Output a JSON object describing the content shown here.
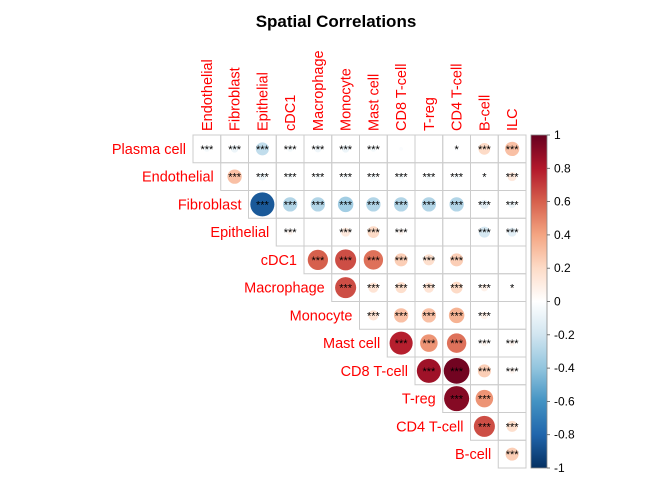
{
  "chart_data": {
    "type": "heatmap",
    "subtype": "correlation-circle-upper",
    "title": "Spatial Correlations",
    "row_labels": [
      "Plasma cell",
      "Endothelial",
      "Fibroblast",
      "Epithelial",
      "cDC1",
      "Macrophage",
      "Monocyte",
      "Mast cell",
      "CD8 T-cell",
      "T-reg",
      "CD4 T-cell",
      "B-cell"
    ],
    "col_labels": [
      "Endothelial",
      "Fibroblast",
      "Epithelial",
      "cDC1",
      "Macrophage",
      "Monocyte",
      "Mast cell",
      "CD8 T-cell",
      "T-reg",
      "CD4 T-cell",
      "B-cell",
      "ILC"
    ],
    "cells": [
      {
        "row": 0,
        "col": 0,
        "value": -0.05,
        "sig": "***"
      },
      {
        "row": 0,
        "col": 1,
        "value": -0.08,
        "sig": "***"
      },
      {
        "row": 0,
        "col": 2,
        "value": -0.25,
        "sig": "***"
      },
      {
        "row": 0,
        "col": 3,
        "value": -0.05,
        "sig": "***"
      },
      {
        "row": 0,
        "col": 4,
        "value": -0.07,
        "sig": "***"
      },
      {
        "row": 0,
        "col": 5,
        "value": -0.08,
        "sig": "***"
      },
      {
        "row": 0,
        "col": 6,
        "value": -0.05,
        "sig": "***"
      },
      {
        "row": 0,
        "col": 7,
        "value": -0.02,
        "sig": ""
      },
      {
        "row": 0,
        "col": 8,
        "value": 0.0,
        "sig": ""
      },
      {
        "row": 0,
        "col": 9,
        "value": -0.02,
        "sig": "*"
      },
      {
        "row": 0,
        "col": 10,
        "value": 0.2,
        "sig": "***"
      },
      {
        "row": 0,
        "col": 11,
        "value": 0.3,
        "sig": "***"
      },
      {
        "row": 1,
        "col": 1,
        "value": 0.3,
        "sig": "***"
      },
      {
        "row": 1,
        "col": 2,
        "value": -0.08,
        "sig": "***"
      },
      {
        "row": 1,
        "col": 3,
        "value": -0.05,
        "sig": "***"
      },
      {
        "row": 1,
        "col": 4,
        "value": -0.05,
        "sig": "***"
      },
      {
        "row": 1,
        "col": 5,
        "value": -0.05,
        "sig": "***"
      },
      {
        "row": 1,
        "col": 6,
        "value": -0.05,
        "sig": "***"
      },
      {
        "row": 1,
        "col": 7,
        "value": -0.05,
        "sig": "***"
      },
      {
        "row": 1,
        "col": 8,
        "value": -0.05,
        "sig": "***"
      },
      {
        "row": 1,
        "col": 9,
        "value": -0.05,
        "sig": "***"
      },
      {
        "row": 1,
        "col": 10,
        "value": -0.02,
        "sig": "*"
      },
      {
        "row": 1,
        "col": 11,
        "value": 0.12,
        "sig": "***"
      },
      {
        "row": 2,
        "col": 2,
        "value": -0.85,
        "sig": "***"
      },
      {
        "row": 2,
        "col": 3,
        "value": -0.3,
        "sig": "***"
      },
      {
        "row": 2,
        "col": 4,
        "value": -0.3,
        "sig": "***"
      },
      {
        "row": 2,
        "col": 5,
        "value": -0.35,
        "sig": "***"
      },
      {
        "row": 2,
        "col": 6,
        "value": -0.3,
        "sig": "***"
      },
      {
        "row": 2,
        "col": 7,
        "value": -0.3,
        "sig": "***"
      },
      {
        "row": 2,
        "col": 8,
        "value": -0.3,
        "sig": "***"
      },
      {
        "row": 2,
        "col": 9,
        "value": -0.3,
        "sig": "***"
      },
      {
        "row": 2,
        "col": 10,
        "value": -0.12,
        "sig": "***"
      },
      {
        "row": 2,
        "col": 11,
        "value": -0.08,
        "sig": "***"
      },
      {
        "row": 3,
        "col": 3,
        "value": 0.05,
        "sig": "***"
      },
      {
        "row": 3,
        "col": 4,
        "value": 0.0,
        "sig": ""
      },
      {
        "row": 3,
        "col": 5,
        "value": 0.12,
        "sig": "***"
      },
      {
        "row": 3,
        "col": 6,
        "value": 0.2,
        "sig": "***"
      },
      {
        "row": 3,
        "col": 7,
        "value": 0.05,
        "sig": "***"
      },
      {
        "row": 3,
        "col": 8,
        "value": 0.0,
        "sig": ""
      },
      {
        "row": 3,
        "col": 9,
        "value": 0.0,
        "sig": ""
      },
      {
        "row": 3,
        "col": 10,
        "value": -0.18,
        "sig": "***"
      },
      {
        "row": 3,
        "col": 11,
        "value": -0.12,
        "sig": "***"
      },
      {
        "row": 4,
        "col": 4,
        "value": 0.6,
        "sig": "***"
      },
      {
        "row": 4,
        "col": 5,
        "value": 0.65,
        "sig": "***"
      },
      {
        "row": 4,
        "col": 6,
        "value": 0.55,
        "sig": "***"
      },
      {
        "row": 4,
        "col": 7,
        "value": 0.25,
        "sig": "***"
      },
      {
        "row": 4,
        "col": 8,
        "value": 0.18,
        "sig": "***"
      },
      {
        "row": 4,
        "col": 9,
        "value": 0.25,
        "sig": "***"
      },
      {
        "row": 4,
        "col": 10,
        "value": 0.0,
        "sig": ""
      },
      {
        "row": 4,
        "col": 11,
        "value": 0.0,
        "sig": ""
      },
      {
        "row": 5,
        "col": 5,
        "value": 0.65,
        "sig": "***"
      },
      {
        "row": 5,
        "col": 6,
        "value": 0.15,
        "sig": "***"
      },
      {
        "row": 5,
        "col": 7,
        "value": 0.18,
        "sig": "***"
      },
      {
        "row": 5,
        "col": 8,
        "value": 0.15,
        "sig": "***"
      },
      {
        "row": 5,
        "col": 9,
        "value": 0.2,
        "sig": "***"
      },
      {
        "row": 5,
        "col": 10,
        "value": 0.08,
        "sig": "***"
      },
      {
        "row": 5,
        "col": 11,
        "value": 0.02,
        "sig": "*"
      },
      {
        "row": 6,
        "col": 6,
        "value": 0.15,
        "sig": "***"
      },
      {
        "row": 6,
        "col": 7,
        "value": 0.3,
        "sig": "***"
      },
      {
        "row": 6,
        "col": 8,
        "value": 0.3,
        "sig": "***"
      },
      {
        "row": 6,
        "col": 9,
        "value": 0.35,
        "sig": "***"
      },
      {
        "row": 6,
        "col": 10,
        "value": 0.08,
        "sig": "***"
      },
      {
        "row": 6,
        "col": 11,
        "value": 0.0,
        "sig": ""
      },
      {
        "row": 7,
        "col": 7,
        "value": 0.78,
        "sig": "***"
      },
      {
        "row": 7,
        "col": 8,
        "value": 0.45,
        "sig": "***"
      },
      {
        "row": 7,
        "col": 9,
        "value": 0.55,
        "sig": "***"
      },
      {
        "row": 7,
        "col": 10,
        "value": 0.05,
        "sig": "***"
      },
      {
        "row": 7,
        "col": 11,
        "value": 0.05,
        "sig": "***"
      },
      {
        "row": 8,
        "col": 8,
        "value": 0.85,
        "sig": "***"
      },
      {
        "row": 8,
        "col": 9,
        "value": 0.97,
        "sig": "***"
      },
      {
        "row": 8,
        "col": 10,
        "value": 0.25,
        "sig": "***"
      },
      {
        "row": 8,
        "col": 11,
        "value": 0.05,
        "sig": "***"
      },
      {
        "row": 9,
        "col": 9,
        "value": 0.92,
        "sig": "***"
      },
      {
        "row": 9,
        "col": 10,
        "value": 0.45,
        "sig": "***"
      },
      {
        "row": 9,
        "col": 11,
        "value": 0.0,
        "sig": ""
      },
      {
        "row": 10,
        "col": 10,
        "value": 0.65,
        "sig": "***"
      },
      {
        "row": 10,
        "col": 11,
        "value": 0.18,
        "sig": "***"
      },
      {
        "row": 11,
        "col": 11,
        "value": 0.25,
        "sig": "***"
      }
    ],
    "colorbar": {
      "min": -1,
      "max": 1,
      "tick_labels": [
        "1",
        "0.8",
        "0.6",
        "0.4",
        "0.2",
        "0",
        "-0.2",
        "-0.4",
        "-0.6",
        "-0.8",
        "-1"
      ],
      "tick_values": [
        1,
        0.8,
        0.6,
        0.4,
        0.2,
        0,
        -0.2,
        -0.4,
        -0.6,
        -0.8,
        -1
      ],
      "stops": [
        "#053061",
        "#2166AC",
        "#4393C3",
        "#92C5DE",
        "#D1E5F0",
        "#FFFFFF",
        "#FDDBC7",
        "#F4A582",
        "#D6604D",
        "#B2182B",
        "#67001F"
      ]
    },
    "label_color": "#FF0000",
    "grid": true,
    "legend_position": "right"
  }
}
